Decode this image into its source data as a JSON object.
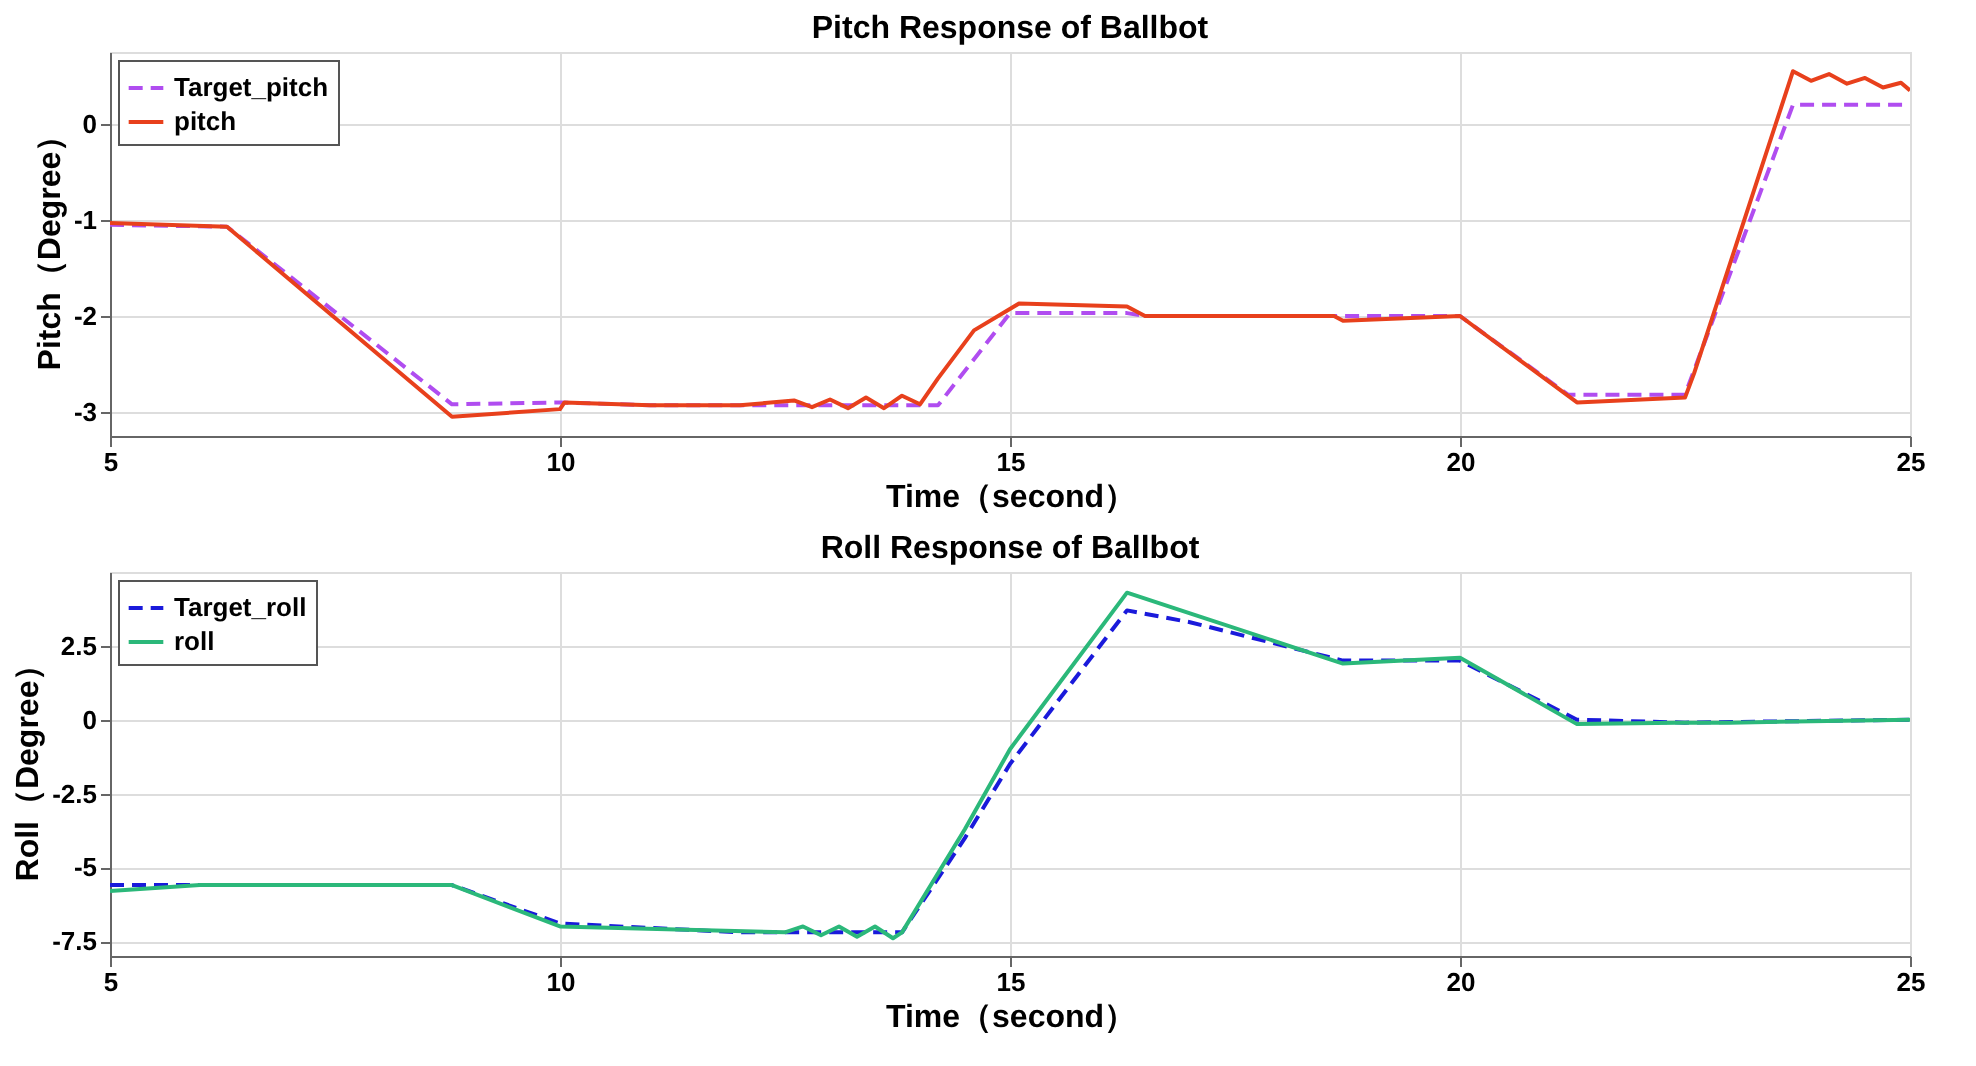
{
  "chart_data": [
    {
      "type": "line",
      "title": "Pitch Response of Ballbot",
      "xlabel": "Time（second）",
      "ylabel": "Pitch（Degree）",
      "xlim": [
        5,
        25
      ],
      "xticks": [
        5,
        10,
        15,
        20,
        25
      ],
      "ylim": [
        -3.25,
        0.75
      ],
      "yticks": [
        -3,
        -2,
        -1,
        0
      ],
      "grid": true,
      "legend": "top left",
      "series": [
        {
          "name": "Target_pitch",
          "color": "#b04df0",
          "line_style": "dashed",
          "x": [
            5,
            6.3,
            8.8,
            10,
            11,
            14.2,
            15,
            16.3,
            16.5,
            20,
            21.2,
            22.5,
            23.7,
            25
          ],
          "values": [
            -1.05,
            -1.07,
            -2.92,
            -2.9,
            -2.93,
            -2.93,
            -1.97,
            -1.97,
            -2.0,
            -2.0,
            -2.82,
            -2.82,
            0.2,
            0.2
          ]
        },
        {
          "name": "pitch",
          "color": "#e8401c",
          "line_style": "solid",
          "x": [
            5,
            6.3,
            8.8,
            10,
            10.05,
            11,
            12,
            12.6,
            12.8,
            13,
            13.2,
            13.4,
            13.6,
            13.8,
            14,
            14.2,
            14.4,
            14.6,
            15.1,
            16.3,
            16.5,
            18.6,
            18.7,
            20,
            21.3,
            22.5,
            22.6,
            23.7,
            23.9,
            24.1,
            24.3,
            24.5,
            24.7,
            24.9,
            25
          ],
          "values": [
            -1.03,
            -1.07,
            -3.05,
            -2.97,
            -2.9,
            -2.93,
            -2.93,
            -2.88,
            -2.95,
            -2.87,
            -2.96,
            -2.85,
            -2.96,
            -2.83,
            -2.92,
            -2.65,
            -2.4,
            -2.15,
            -1.87,
            -1.9,
            -2.0,
            -2.0,
            -2.05,
            -2.0,
            -2.9,
            -2.85,
            -2.6,
            0.55,
            0.45,
            0.52,
            0.42,
            0.48,
            0.38,
            0.43,
            0.35
          ]
        }
      ]
    },
    {
      "type": "line",
      "title": "Roll Response of Ballbot",
      "xlabel": "Time（second）",
      "ylabel": "Roll（Degree）",
      "xlim": [
        5,
        25
      ],
      "xticks": [
        5,
        10,
        15,
        20,
        25
      ],
      "ylim": [
        -8,
        5
      ],
      "yticks": [
        -7.5,
        -5,
        -2.5,
        0,
        2.5
      ],
      "grid": true,
      "legend": "top left",
      "series": [
        {
          "name": "Target_roll",
          "color": "#1a1adb",
          "line_style": "dashed",
          "x": [
            5,
            8.8,
            10,
            12,
            13.8,
            14.5,
            15,
            16.3,
            17,
            18.7,
            20,
            21.3,
            22.5,
            25
          ],
          "values": [
            -5.6,
            -5.6,
            -6.9,
            -7.2,
            -7.2,
            -4.0,
            -1.5,
            3.7,
            3.3,
            2.0,
            2.0,
            0,
            -0.1,
            0
          ]
        },
        {
          "name": "roll",
          "color": "#2bb87a",
          "line_style": "solid",
          "x": [
            5,
            6,
            8.8,
            10,
            12.5,
            12.7,
            12.9,
            13.1,
            13.3,
            13.5,
            13.7,
            13.8,
            14.5,
            15,
            16.3,
            17,
            18.7,
            20,
            21.3,
            22.4,
            23,
            25
          ],
          "values": [
            -5.8,
            -5.6,
            -5.6,
            -7.0,
            -7.2,
            -7.0,
            -7.3,
            -7.0,
            -7.35,
            -7.0,
            -7.4,
            -7.2,
            -3.7,
            -1.0,
            4.3,
            3.6,
            1.9,
            2.1,
            -0.15,
            -0.1,
            -0.1,
            0
          ]
        }
      ]
    }
  ]
}
